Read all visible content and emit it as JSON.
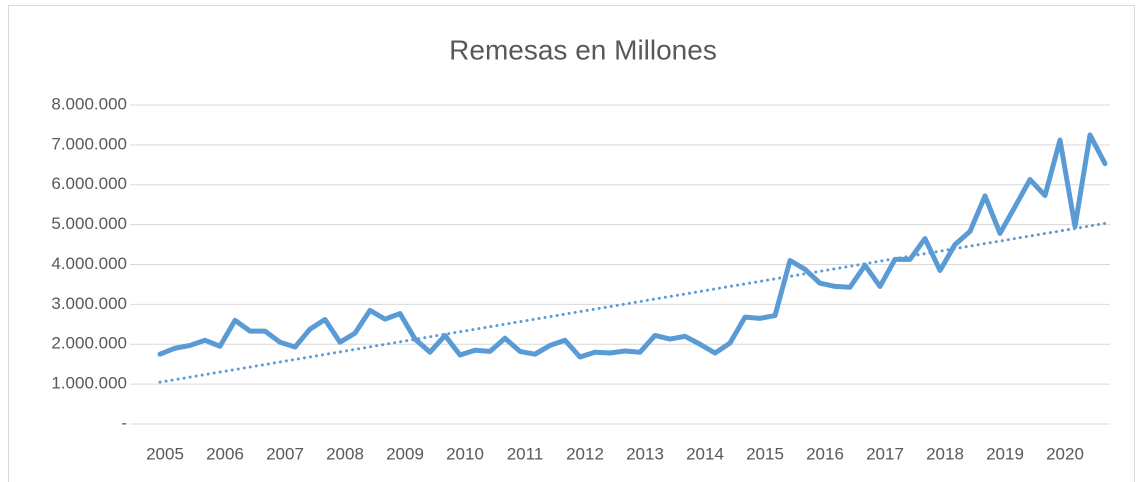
{
  "chart_data": {
    "type": "line",
    "title": "Remesas en Millones",
    "categories": [
      "2005",
      null,
      null,
      null,
      "2006",
      null,
      null,
      null,
      "2007",
      null,
      null,
      null,
      "2008",
      null,
      null,
      null,
      "2009",
      null,
      null,
      null,
      "2010",
      null,
      null,
      null,
      "2011",
      null,
      null,
      null,
      "2012",
      null,
      null,
      null,
      "2013",
      null,
      null,
      null,
      "2014",
      null,
      null,
      null,
      "2015",
      null,
      null,
      null,
      "2016",
      null,
      null,
      null,
      "2017",
      null,
      null,
      null,
      "2018",
      null,
      null,
      null,
      "2019",
      null,
      null,
      null,
      "2020",
      null,
      null,
      null
    ],
    "series": [
      {
        "name": "Remesas",
        "color": "#5b9bd5",
        "values": [
          1750000,
          1900000,
          1970000,
          2100000,
          1950000,
          2600000,
          2330000,
          2330000,
          2050000,
          1930000,
          2380000,
          2620000,
          2050000,
          2280000,
          2850000,
          2630000,
          2770000,
          2130000,
          1800000,
          2220000,
          1730000,
          1850000,
          1820000,
          2150000,
          1820000,
          1750000,
          1970000,
          2100000,
          1680000,
          1800000,
          1780000,
          1830000,
          1800000,
          2220000,
          2130000,
          2200000,
          2000000,
          1780000,
          2030000,
          2680000,
          2650000,
          2720000,
          4100000,
          3880000,
          3530000,
          3450000,
          3430000,
          3980000,
          3450000,
          4130000,
          4130000,
          4650000,
          3850000,
          4500000,
          4830000,
          5720000,
          4780000,
          5450000,
          6130000,
          5730000,
          7120000,
          4950000,
          7250000,
          6530000
        ]
      }
    ],
    "trendline": {
      "start": 1050000,
      "end": 5030000,
      "color": "#5b9bd5"
    },
    "ylim": [
      0,
      8000000
    ],
    "yticks": [
      {
        "value": 0,
        "label": "-"
      },
      {
        "value": 1000000,
        "label": "1.000.000"
      },
      {
        "value": 2000000,
        "label": "2.000.000"
      },
      {
        "value": 3000000,
        "label": "3.000.000"
      },
      {
        "value": 4000000,
        "label": "4.000.000"
      },
      {
        "value": 5000000,
        "label": "5.000.000"
      },
      {
        "value": 6000000,
        "label": "6.000.000"
      },
      {
        "value": 7000000,
        "label": "7.000.000"
      },
      {
        "value": 8000000,
        "label": "8.000.000"
      }
    ],
    "grid": true
  }
}
